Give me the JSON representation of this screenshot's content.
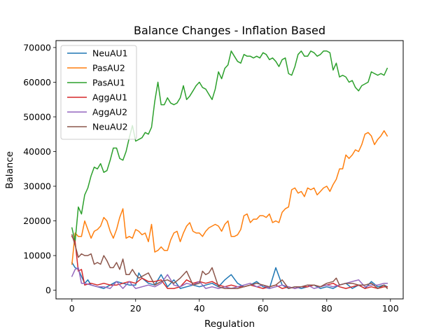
{
  "chart_data": {
    "type": "line",
    "title": "Balance Changes - Inflation Based",
    "xlabel": "Regulation",
    "ylabel": "Balance",
    "xlim": [
      -5,
      104
    ],
    "ylim": [
      -2500,
      72000
    ],
    "xticks": [
      0,
      20,
      40,
      60,
      80,
      100
    ],
    "yticks": [
      0,
      10000,
      20000,
      30000,
      40000,
      50000,
      60000,
      70000
    ],
    "grid": false,
    "legend_position": "top-left",
    "series": [
      {
        "name": "NeuAU1",
        "color": "#1f77b4",
        "x": [
          0,
          1,
          2,
          3,
          4,
          5,
          6,
          8,
          10,
          12,
          14,
          16,
          18,
          20,
          21,
          22,
          24,
          26,
          28,
          30,
          32,
          34,
          36,
          38,
          40,
          42,
          44,
          46,
          48,
          50,
          52,
          54,
          56,
          58,
          60,
          62,
          64,
          66,
          68,
          70,
          72,
          74,
          76,
          78,
          80,
          82,
          84,
          86,
          88,
          90,
          92,
          94,
          96,
          98,
          99
        ],
        "y": [
          8000,
          6500,
          6000,
          4000,
          2000,
          3000,
          1500,
          1000,
          500,
          1500,
          2500,
          2000,
          1500,
          1500,
          5000,
          3500,
          2000,
          1500,
          4500,
          1000,
          3000,
          500,
          1000,
          1500,
          1000,
          1500,
          2000,
          1000,
          3000,
          4500,
          2000,
          1000,
          1500,
          2500,
          1000,
          500,
          6500,
          1500,
          500,
          1000,
          500,
          1000,
          1500,
          500,
          1000,
          500,
          1500,
          2000,
          500,
          1500,
          500,
          2500,
          1000,
          1500,
          1000
        ]
      },
      {
        "name": "PasAU2",
        "color": "#ff7f0e",
        "x": [
          0,
          1,
          2,
          3,
          4,
          5,
          6,
          7,
          8,
          9,
          10,
          11,
          12,
          13,
          14,
          15,
          16,
          17,
          18,
          19,
          20,
          21,
          22,
          23,
          24,
          25,
          26,
          27,
          28,
          29,
          30,
          31,
          32,
          33,
          34,
          35,
          36,
          37,
          38,
          39,
          40,
          41,
          42,
          43,
          44,
          45,
          46,
          47,
          48,
          49,
          50,
          51,
          52,
          53,
          54,
          55,
          56,
          57,
          58,
          59,
          60,
          61,
          62,
          63,
          64,
          65,
          66,
          67,
          68,
          69,
          70,
          71,
          72,
          73,
          74,
          75,
          76,
          77,
          78,
          79,
          80,
          81,
          82,
          83,
          84,
          85,
          86,
          87,
          88,
          89,
          90,
          91,
          92,
          93,
          94,
          95,
          96,
          97,
          98,
          99
        ],
        "y": [
          7500,
          16500,
          15500,
          15500,
          20000,
          17500,
          15000,
          17000,
          17500,
          18500,
          21000,
          20000,
          17000,
          15000,
          17500,
          21000,
          23500,
          15000,
          15500,
          15000,
          17500,
          17000,
          16000,
          16500,
          14000,
          19000,
          11000,
          11500,
          12500,
          11500,
          11500,
          14500,
          16500,
          17000,
          14000,
          16500,
          18500,
          19500,
          17000,
          16500,
          16500,
          15500,
          17000,
          18000,
          18500,
          19000,
          18500,
          17000,
          19000,
          20000,
          15500,
          15500,
          16000,
          17500,
          21500,
          22000,
          19500,
          20500,
          20500,
          21500,
          21500,
          21000,
          22000,
          19500,
          20000,
          19500,
          22500,
          23500,
          24000,
          29000,
          29500,
          28000,
          28500,
          27000,
          29500,
          29000,
          29500,
          27500,
          28500,
          29500,
          30000,
          28500,
          30500,
          32000,
          35000,
          35000,
          39000,
          38000,
          39000,
          40500,
          40000,
          42000,
          45000,
          45500,
          44500,
          42000,
          43500,
          44500,
          46000,
          44500
        ]
      },
      {
        "name": "PasAU1",
        "color": "#2ca02c",
        "x": [
          0,
          1,
          2,
          3,
          4,
          5,
          6,
          7,
          8,
          9,
          10,
          11,
          12,
          13,
          14,
          15,
          16,
          17,
          18,
          19,
          20,
          21,
          22,
          23,
          24,
          25,
          26,
          27,
          28,
          29,
          30,
          31,
          32,
          33,
          34,
          35,
          36,
          37,
          38,
          39,
          40,
          41,
          42,
          43,
          44,
          45,
          46,
          47,
          48,
          49,
          50,
          51,
          52,
          53,
          54,
          55,
          56,
          57,
          58,
          59,
          60,
          61,
          62,
          63,
          64,
          65,
          66,
          67,
          68,
          69,
          70,
          71,
          72,
          73,
          74,
          75,
          76,
          77,
          78,
          79,
          80,
          81,
          82,
          83,
          84,
          85,
          86,
          87,
          88,
          89,
          90,
          91,
          92,
          93,
          94,
          95,
          96,
          97,
          98,
          99
        ],
        "y": [
          18000,
          14000,
          24000,
          22000,
          27500,
          29500,
          33000,
          35500,
          35000,
          36500,
          34000,
          34500,
          37500,
          41000,
          41000,
          38000,
          37500,
          40000,
          44000,
          47500,
          43000,
          43500,
          44000,
          45500,
          45000,
          47000,
          54500,
          60000,
          53500,
          53500,
          55500,
          54000,
          53500,
          54000,
          55500,
          59000,
          55000,
          56000,
          57500,
          59000,
          60000,
          58500,
          58000,
          56500,
          55000,
          58000,
          63000,
          61000,
          64000,
          65000,
          69000,
          67500,
          66000,
          65500,
          68000,
          67500,
          67500,
          67000,
          67500,
          67000,
          68500,
          68000,
          66500,
          67000,
          66000,
          64500,
          66500,
          67000,
          62500,
          62000,
          64500,
          68000,
          69000,
          67500,
          67500,
          69000,
          68500,
          67500,
          68000,
          69000,
          69000,
          68500,
          63500,
          65500,
          61500,
          62000,
          61500,
          60000,
          60500,
          58500,
          57500,
          59000,
          59500,
          60000,
          63000,
          62500,
          62000,
          62500,
          62000,
          64000
        ]
      },
      {
        "name": "AggAU1",
        "color": "#d62728",
        "x": [
          0,
          1,
          2,
          3,
          4,
          6,
          8,
          10,
          12,
          14,
          16,
          18,
          20,
          22,
          24,
          26,
          28,
          30,
          32,
          34,
          36,
          38,
          40,
          42,
          44,
          46,
          48,
          50,
          52,
          54,
          56,
          58,
          60,
          62,
          64,
          66,
          68,
          70,
          72,
          74,
          76,
          78,
          80,
          82,
          84,
          86,
          88,
          90,
          92,
          94,
          96,
          98,
          99
        ],
        "y": [
          15500,
          14000,
          5500,
          6000,
          1500,
          2000,
          1500,
          2000,
          1500,
          1500,
          2000,
          2500,
          2000,
          3500,
          2500,
          2500,
          3000,
          500,
          500,
          1000,
          3000,
          2000,
          2500,
          2000,
          2500,
          1500,
          1000,
          1500,
          1000,
          1000,
          1500,
          1000,
          500,
          1000,
          1500,
          500,
          1000,
          500,
          1000,
          1000,
          1500,
          1000,
          1500,
          2000,
          1000,
          500,
          1000,
          1500,
          500,
          1000,
          500,
          1000,
          1000
        ]
      },
      {
        "name": "AggAU2",
        "color": "#9467bd",
        "x": [
          0,
          1,
          2,
          3,
          4,
          6,
          8,
          10,
          12,
          14,
          16,
          18,
          20,
          22,
          24,
          26,
          28,
          30,
          32,
          34,
          36,
          38,
          40,
          42,
          44,
          46,
          48,
          50,
          52,
          54,
          56,
          58,
          60,
          62,
          64,
          66,
          68,
          70,
          72,
          74,
          76,
          78,
          80,
          82,
          84,
          86,
          88,
          90,
          92,
          94,
          96,
          98,
          99
        ],
        "y": [
          4000,
          6000,
          6500,
          2000,
          2000,
          1500,
          1000,
          1000,
          500,
          2500,
          500,
          2500,
          500,
          1000,
          1500,
          1000,
          2000,
          4500,
          1500,
          1000,
          2000,
          1500,
          2500,
          500,
          1000,
          500,
          1000,
          500,
          1000,
          1500,
          2000,
          1000,
          1500,
          500,
          1000,
          1500,
          1000,
          500,
          1000,
          1500,
          500,
          1000,
          1500,
          1000,
          1500,
          2000,
          2500,
          3000,
          1000,
          1500,
          1500,
          2000,
          2000
        ]
      },
      {
        "name": "NeuAU2",
        "color": "#8c564b",
        "x": [
          0,
          1,
          2,
          3,
          4,
          5,
          6,
          7,
          8,
          9,
          10,
          11,
          12,
          13,
          14,
          15,
          16,
          17,
          18,
          19,
          20,
          21,
          22,
          24,
          26,
          28,
          30,
          32,
          34,
          36,
          38,
          40,
          41,
          42,
          43,
          44,
          46,
          48,
          50,
          52,
          54,
          56,
          58,
          60,
          62,
          64,
          66,
          68,
          70,
          72,
          74,
          76,
          78,
          80,
          82,
          83,
          84,
          86,
          88,
          90,
          92,
          94,
          96,
          98,
          99
        ],
        "y": [
          16000,
          13000,
          9500,
          10500,
          10000,
          10000,
          10500,
          7500,
          8000,
          7500,
          10000,
          8500,
          6500,
          6500,
          8000,
          6000,
          9000,
          4500,
          4500,
          6000,
          4500,
          3500,
          4000,
          5000,
          1500,
          2500,
          3000,
          2000,
          3500,
          5500,
          1500,
          2000,
          5500,
          4500,
          5000,
          6500,
          1000,
          500,
          500,
          500,
          1000,
          1500,
          2000,
          1500,
          1000,
          1500,
          3000,
          500,
          1000,
          1000,
          1500,
          1500,
          1000,
          2000,
          2500,
          3500,
          1500,
          2000,
          2000,
          1500,
          1500,
          2000,
          500,
          1500,
          500
        ]
      }
    ]
  }
}
